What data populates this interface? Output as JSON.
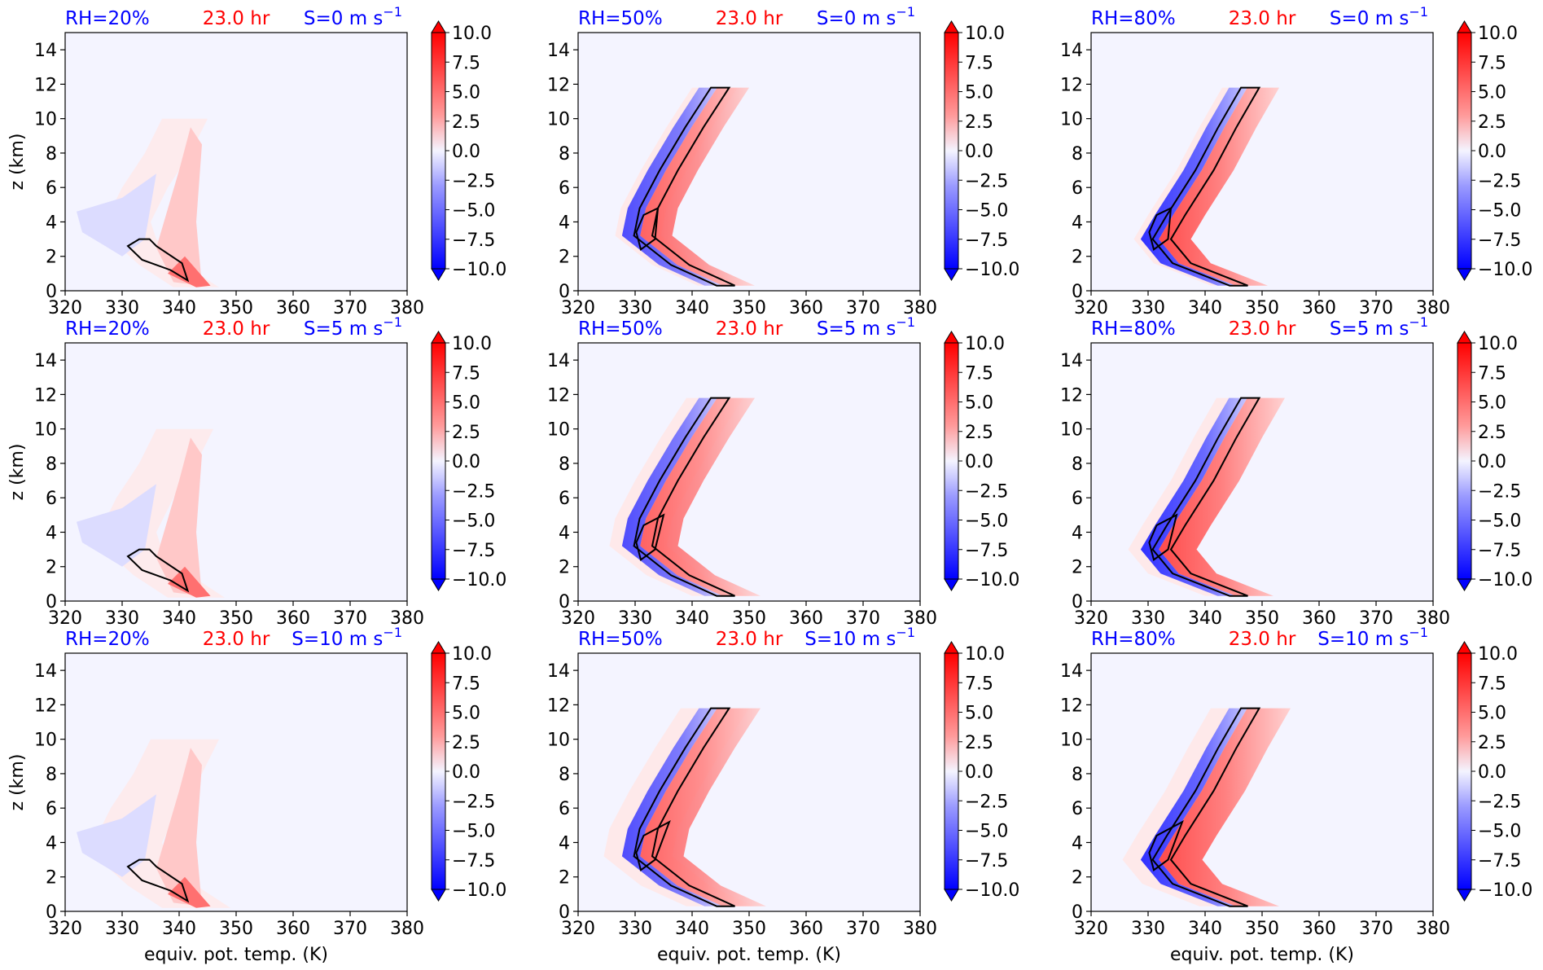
{
  "figure": {
    "colorbar_ticks": [
      "10.0",
      "7.5",
      "5.0",
      "2.5",
      "0.0",
      "−2.5",
      "−5.0",
      "−7.5",
      "−10.0"
    ],
    "colors": {
      "title_blue": "#0000ff",
      "title_red": "#ff0000",
      "contour": "#000000"
    }
  },
  "chart_data": [
    {
      "type": "heatmap",
      "rh": "RH=20%",
      "time": "23.0 hr",
      "shear": "S=0 m s",
      "shear_exp": "−1",
      "xlabel": "",
      "ylabel": "z (km)",
      "xlim": [
        320,
        380
      ],
      "ylim": [
        0,
        15
      ],
      "xticks": [
        "320",
        "330",
        "340",
        "350",
        "360",
        "370",
        "380"
      ],
      "yticks": [
        "0",
        "2",
        "4",
        "6",
        "8",
        "10",
        "12",
        "14"
      ],
      "clim": [
        -10,
        10
      ]
    },
    {
      "type": "heatmap",
      "rh": "RH=50%",
      "time": "23.0 hr",
      "shear": "S=0 m s",
      "shear_exp": "−1",
      "xlabel": "",
      "ylabel": "",
      "xlim": [
        320,
        380
      ],
      "ylim": [
        0,
        15
      ],
      "xticks": [
        "320",
        "330",
        "340",
        "350",
        "360",
        "370",
        "380"
      ],
      "yticks": [
        "0",
        "2",
        "4",
        "6",
        "8",
        "10",
        "12",
        "14"
      ],
      "clim": [
        -10,
        10
      ]
    },
    {
      "type": "heatmap",
      "rh": "RH=80%",
      "time": "23.0 hr",
      "shear": "S=0 m s",
      "shear_exp": "−1",
      "xlabel": "",
      "ylabel": "",
      "xlim": [
        320,
        380
      ],
      "ylim": [
        0,
        15
      ],
      "xticks": [
        "320",
        "330",
        "340",
        "350",
        "360",
        "370",
        "380"
      ],
      "yticks": [
        "0",
        "2",
        "4",
        "6",
        "8",
        "10",
        "12",
        "14"
      ],
      "clim": [
        -10,
        10
      ]
    },
    {
      "type": "heatmap",
      "rh": "RH=20%",
      "time": "23.0 hr",
      "shear": "S=5 m s",
      "shear_exp": "−1",
      "xlabel": "",
      "ylabel": "z (km)",
      "xlim": [
        320,
        380
      ],
      "ylim": [
        0,
        15
      ],
      "xticks": [
        "320",
        "330",
        "340",
        "350",
        "360",
        "370",
        "380"
      ],
      "yticks": [
        "0",
        "2",
        "4",
        "6",
        "8",
        "10",
        "12",
        "14"
      ],
      "clim": [
        -10,
        10
      ]
    },
    {
      "type": "heatmap",
      "rh": "RH=50%",
      "time": "23.0 hr",
      "shear": "S=5 m s",
      "shear_exp": "−1",
      "xlabel": "",
      "ylabel": "",
      "xlim": [
        320,
        380
      ],
      "ylim": [
        0,
        15
      ],
      "xticks": [
        "320",
        "330",
        "340",
        "350",
        "360",
        "370",
        "380"
      ],
      "yticks": [
        "0",
        "2",
        "4",
        "6",
        "8",
        "10",
        "12",
        "14"
      ],
      "clim": [
        -10,
        10
      ]
    },
    {
      "type": "heatmap",
      "rh": "RH=80%",
      "time": "23.0 hr",
      "shear": "S=5 m s",
      "shear_exp": "−1",
      "xlabel": "",
      "ylabel": "",
      "xlim": [
        320,
        380
      ],
      "ylim": [
        0,
        15
      ],
      "xticks": [
        "320",
        "330",
        "340",
        "350",
        "360",
        "370",
        "380"
      ],
      "yticks": [
        "0",
        "2",
        "4",
        "6",
        "8",
        "10",
        "12",
        "14"
      ],
      "clim": [
        -10,
        10
      ]
    },
    {
      "type": "heatmap",
      "rh": "RH=20%",
      "time": "23.0 hr",
      "shear": "S=10 m s",
      "shear_exp": "−1",
      "xlabel": "equiv. pot. temp. (K)",
      "ylabel": "z (km)",
      "xlim": [
        320,
        380
      ],
      "ylim": [
        0,
        15
      ],
      "xticks": [
        "320",
        "330",
        "340",
        "350",
        "360",
        "370",
        "380"
      ],
      "yticks": [
        "0",
        "2",
        "4",
        "6",
        "8",
        "10",
        "12",
        "14"
      ],
      "clim": [
        -10,
        10
      ]
    },
    {
      "type": "heatmap",
      "rh": "RH=50%",
      "time": "23.0 hr",
      "shear": "S=10 m s",
      "shear_exp": "−1",
      "xlabel": "equiv. pot. temp. (K)",
      "ylabel": "",
      "xlim": [
        320,
        380
      ],
      "ylim": [
        0,
        15
      ],
      "xticks": [
        "320",
        "330",
        "340",
        "350",
        "360",
        "370",
        "380"
      ],
      "yticks": [
        "0",
        "2",
        "4",
        "6",
        "8",
        "10",
        "12",
        "14"
      ],
      "clim": [
        -10,
        10
      ]
    },
    {
      "type": "heatmap",
      "rh": "RH=80%",
      "time": "23.0 hr",
      "shear": "S=10 m s",
      "shear_exp": "−1",
      "xlabel": "equiv. pot. temp. (K)",
      "ylabel": "",
      "xlim": [
        320,
        380
      ],
      "ylim": [
        0,
        15
      ],
      "xticks": [
        "320",
        "330",
        "340",
        "350",
        "360",
        "370",
        "380"
      ],
      "yticks": [
        "0",
        "2",
        "4",
        "6",
        "8",
        "10",
        "12",
        "14"
      ],
      "clim": [
        -10,
        10
      ]
    }
  ]
}
